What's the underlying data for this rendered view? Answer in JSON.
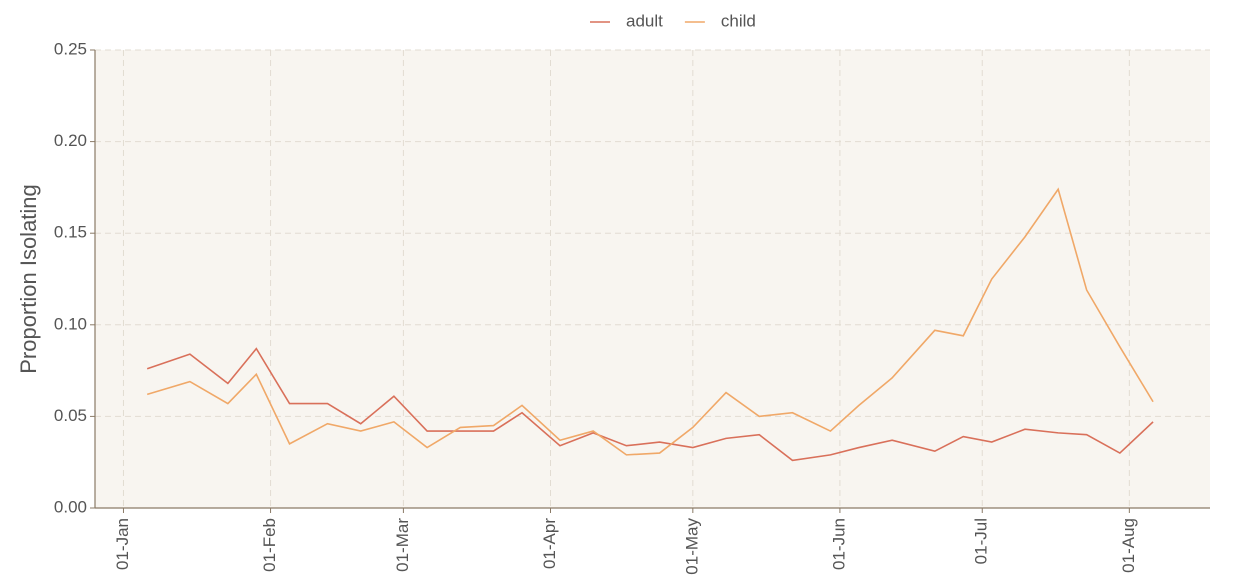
{
  "chart_data": {
    "type": "line",
    "y_label": "Proportion Isolating",
    "x": [
      "06-Jan",
      "15-Jan",
      "23-Jan",
      "29-Jan",
      "05-Feb",
      "13-Feb",
      "20-Feb",
      "27-Feb",
      "06-Mar",
      "13-Mar",
      "20-Mar",
      "26-Mar",
      "03-Apr",
      "10-Apr",
      "17-Apr",
      "24-Apr",
      "01-May",
      "08-May",
      "15-May",
      "22-May",
      "30-May",
      "05-Jun",
      "12-Jun",
      "21-Jun",
      "27-Jun",
      "03-Jul",
      "10-Jul",
      "17-Jul",
      "23-Jul",
      "30-Jul",
      "06-Aug"
    ],
    "series": [
      {
        "name": "adult",
        "color": "#d9705a",
        "values": [
          0.076,
          0.084,
          0.068,
          0.087,
          0.057,
          0.057,
          0.046,
          0.061,
          0.042,
          0.042,
          0.042,
          0.052,
          0.034,
          0.041,
          0.034,
          0.036,
          0.033,
          0.038,
          0.04,
          0.026,
          0.029,
          0.033,
          0.037,
          0.031,
          0.039,
          0.036,
          0.043,
          0.041,
          0.04,
          0.03,
          0.047
        ]
      },
      {
        "name": "child",
        "color": "#f0a868",
        "values": [
          0.062,
          0.069,
          0.057,
          0.073,
          0.035,
          0.046,
          0.042,
          0.047,
          0.033,
          0.044,
          0.045,
          0.056,
          0.037,
          0.042,
          0.029,
          0.03,
          0.044,
          0.063,
          0.05,
          0.052,
          0.042,
          0.056,
          0.071,
          0.097,
          0.094,
          0.125,
          0.148,
          0.174,
          0.119,
          0.088,
          0.058
        ]
      }
    ],
    "xlim": [
      "26-Dec",
      "18-Aug"
    ],
    "xticks": [
      "01-Jan",
      "01-Feb",
      "01-Mar",
      "01-Apr",
      "01-May",
      "01-Jun",
      "01-Jul",
      "01-Aug"
    ],
    "ylim": [
      0,
      0.25
    ],
    "yticks": [
      {
        "value": 0,
        "label": "0.00"
      },
      {
        "value": 0.05,
        "label": "0.05"
      },
      {
        "value": 0.1,
        "label": "0.10"
      },
      {
        "value": 0.15,
        "label": "0.15"
      },
      {
        "value": 0.2,
        "label": "0.20"
      },
      {
        "value": 0.25,
        "label": "0.25"
      }
    ],
    "grid": true,
    "legend": "top"
  }
}
